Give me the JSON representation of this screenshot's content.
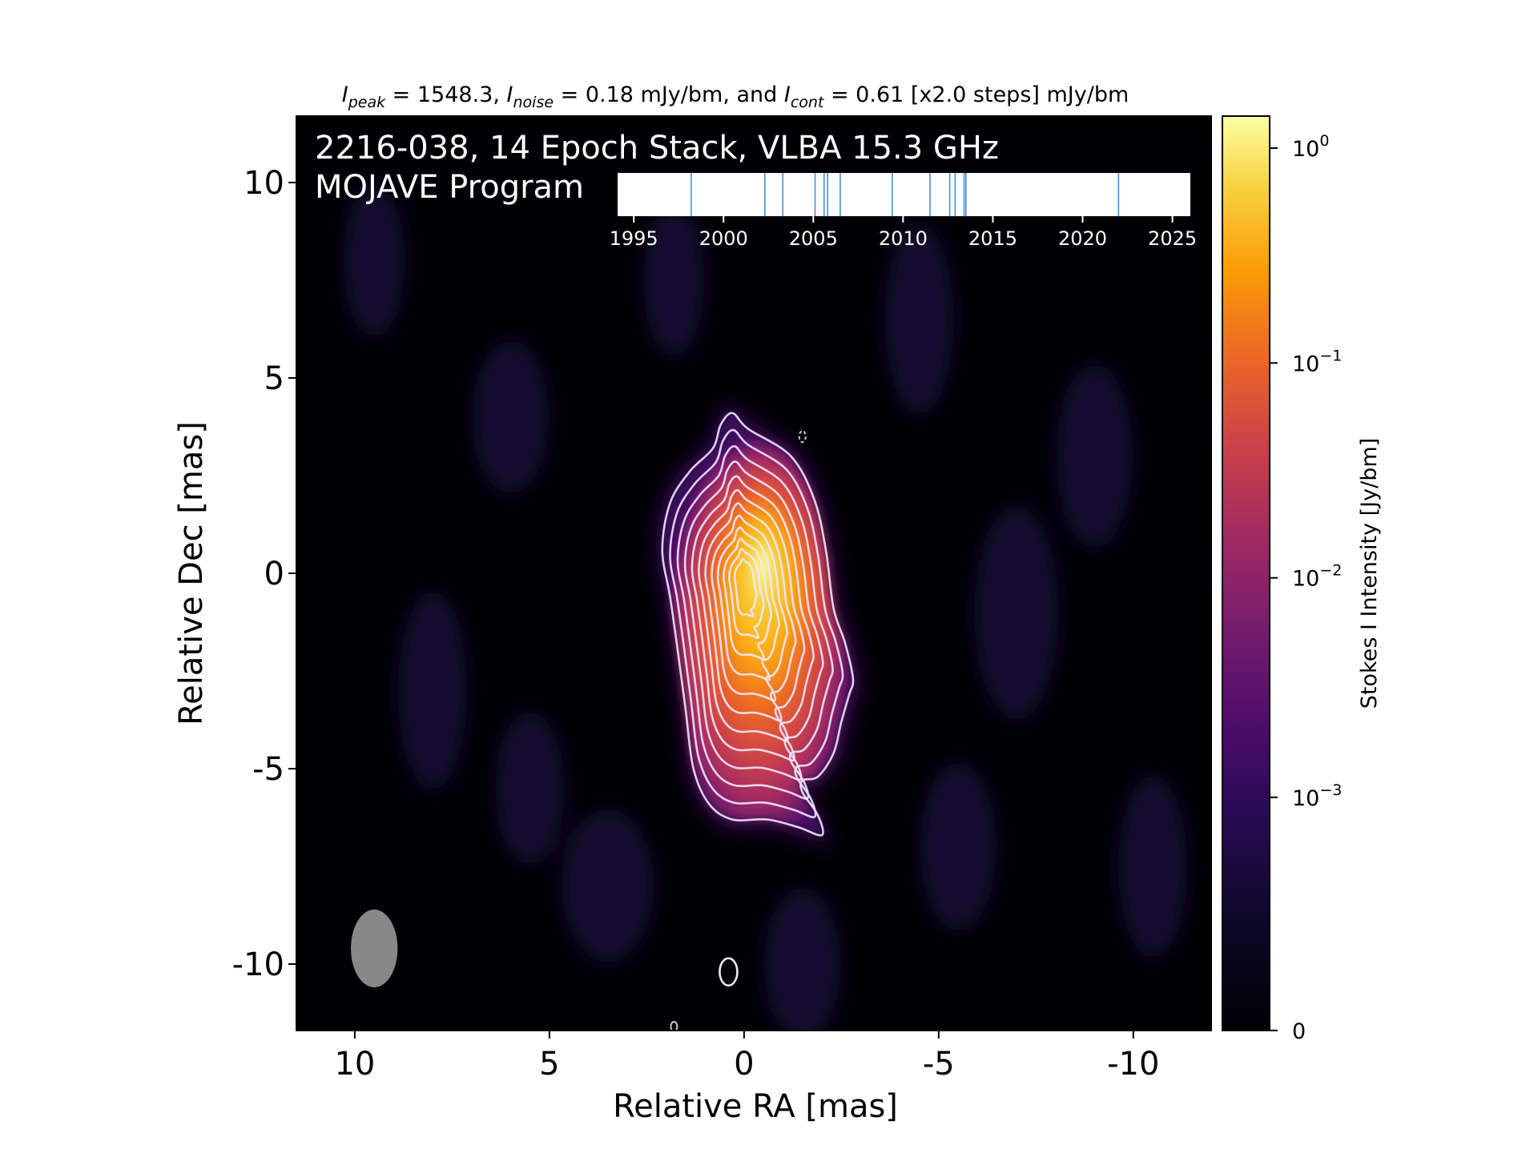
{
  "chart_data": {
    "type": "heatmap",
    "header": {
      "peak_sym": "I",
      "peak_sub": "peak",
      "peak_val": " = 1548.3, ",
      "noise_sym": "I",
      "noise_sub": "noise",
      "noise_val": " = 0.18 mJy/bm, and ",
      "cont_sym": "I",
      "cont_sub": "cont",
      "cont_val": " = 0.61 [x2.0 steps] mJy/bm"
    },
    "title_line1": "2216-038, 14 Epoch Stack, VLBA 15.3 GHz",
    "title_line2": "MOJAVE Program",
    "xlabel": "Relative RA [mas]",
    "ylabel": "Relative Dec [mas]",
    "xlim": [
      11.5,
      -12
    ],
    "ylim": [
      -11.7,
      11.7
    ],
    "x_ticks": [
      10,
      5,
      0,
      -5,
      -10
    ],
    "x_tick_labels": [
      "10",
      "5",
      "0",
      "-5",
      "-10"
    ],
    "y_ticks": [
      10,
      5,
      0,
      -5,
      -10
    ],
    "y_tick_labels": [
      "10",
      "5",
      "0",
      "-5",
      "-10"
    ],
    "colormap": "inferno",
    "colorbar": {
      "label": "Stokes I Intensity [Jy/bm]",
      "scale": "symlog",
      "tick_base": [
        "10",
        "10",
        "10",
        "10",
        "0"
      ],
      "tick_exp": [
        "0",
        "−1",
        "−2",
        "−3",
        ""
      ]
    },
    "source": {
      "peak_ra": 0.0,
      "peak_dec": -0.1,
      "extent_dec": [
        -6.7,
        4.1
      ]
    },
    "contours": {
      "count": 12,
      "step_factor": 2.0,
      "color": "#f0e6ff"
    },
    "beam": {
      "ra": 9.5,
      "dec": -9.6,
      "major_mas": 2.0,
      "minor_mas": 1.2,
      "color": "#888888"
    },
    "epoch_timeline": {
      "tick_labels": [
        "1995",
        "2000",
        "2005",
        "2010",
        "2015",
        "2020",
        "2025"
      ],
      "range": [
        1994.1,
        2026.0
      ],
      "epochs": [
        1998.2,
        2002.3,
        2003.3,
        2005.1,
        2005.6,
        2005.8,
        2006.5,
        2009.4,
        2011.5,
        2012.6,
        2012.9,
        2013.4,
        2013.5,
        2022.0
      ],
      "line_color": "#4a8fd0"
    }
  }
}
